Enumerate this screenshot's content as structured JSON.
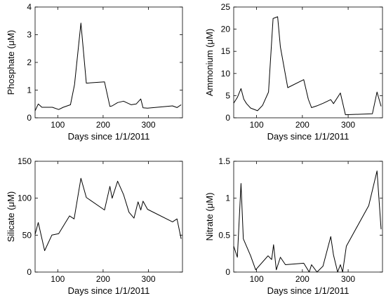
{
  "chart_data": [
    {
      "type": "line",
      "xlabel": "Days since 1/1/2011",
      "ylabel": "Phosphate (μM)",
      "xlim": [
        50,
        375
      ],
      "ylim": [
        0,
        4
      ],
      "xticks": [
        100,
        200,
        300
      ],
      "yticks": [
        0,
        1,
        2,
        3,
        4
      ],
      "x": [
        50,
        57,
        65,
        72,
        88,
        102,
        112,
        128,
        137,
        151,
        163,
        203,
        215,
        220,
        232,
        245,
        262,
        273,
        283,
        288,
        298,
        353,
        363,
        372
      ],
      "y": [
        0.25,
        0.5,
        0.38,
        0.38,
        0.38,
        0.3,
        0.38,
        0.47,
        1.2,
        3.42,
        1.25,
        1.3,
        0.41,
        0.43,
        0.55,
        0.6,
        0.47,
        0.5,
        0.68,
        0.36,
        0.35,
        0.43,
        0.37,
        0.47
      ]
    },
    {
      "type": "line",
      "xlabel": "Days since 1/1/2011",
      "ylabel": "Ammonium (μM)",
      "xlim": [
        50,
        375
      ],
      "ylim": [
        0,
        25
      ],
      "xticks": [
        100,
        200,
        300
      ],
      "yticks": [
        0,
        5,
        10,
        15,
        20,
        25
      ],
      "x": [
        50,
        58,
        66,
        72,
        78,
        87,
        102,
        113,
        126,
        136,
        146,
        152,
        168,
        203,
        213,
        220,
        232,
        246,
        262,
        268,
        283,
        294,
        353,
        363,
        372
      ],
      "y": [
        3.3,
        4.6,
        6.6,
        4.2,
        3.2,
        2.2,
        1.6,
        2.8,
        5.8,
        22.4,
        22.8,
        16.0,
        6.8,
        8.6,
        4.2,
        2.3,
        2.7,
        3.3,
        4.1,
        3.2,
        5.6,
        0.7,
        0.9,
        5.8,
        2.6
      ]
    },
    {
      "type": "line",
      "xlabel": "Days since 1/1/2011",
      "ylabel": "Silicate (μM)",
      "xlim": [
        50,
        375
      ],
      "ylim": [
        0,
        150
      ],
      "xticks": [
        100,
        200,
        300
      ],
      "yticks": [
        0,
        50,
        100,
        150
      ],
      "x": [
        50,
        57,
        71,
        87,
        102,
        113,
        126,
        136,
        151,
        163,
        203,
        215,
        220,
        232,
        245,
        257,
        268,
        277,
        283,
        288,
        298,
        353,
        363,
        372
      ],
      "y": [
        51,
        67,
        29,
        50,
        52,
        63,
        76,
        72,
        127,
        101,
        84,
        116,
        100,
        123,
        105,
        81,
        73,
        95,
        84,
        96,
        85,
        68,
        72,
        45
      ]
    },
    {
      "type": "line",
      "xlabel": "Days since 1/1/2011",
      "ylabel": "Nitrate (μM)",
      "xlim": [
        50,
        375
      ],
      "ylim": [
        0,
        1.5
      ],
      "xticks": [
        100,
        200,
        300
      ],
      "yticks": [
        0,
        0.5,
        1,
        1.5
      ],
      "x": [
        50,
        58,
        66,
        71,
        87,
        98,
        125,
        133,
        137,
        143,
        152,
        163,
        203,
        215,
        220,
        232,
        245,
        262,
        268,
        277,
        283,
        288,
        296,
        345,
        363,
        372
      ],
      "y": [
        0.35,
        0.2,
        1.2,
        0.45,
        0.22,
        0.03,
        0.22,
        0.17,
        0.37,
        0.03,
        0.2,
        0.1,
        0.12,
        0.0,
        0.1,
        0.0,
        0.08,
        0.48,
        0.23,
        0.0,
        0.1,
        0.0,
        0.35,
        0.9,
        1.37,
        0.58
      ]
    }
  ]
}
